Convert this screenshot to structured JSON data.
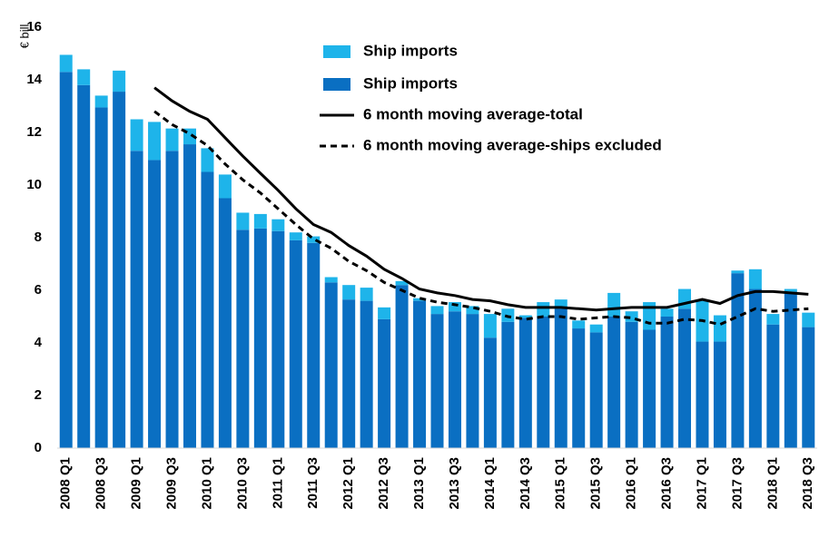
{
  "chart_data": {
    "type": "bar",
    "stacked": true,
    "y_label": "€ bill",
    "categories": [
      "2008 Q1",
      null,
      "2008 Q3",
      null,
      "2009 Q1",
      null,
      "2009 Q3",
      null,
      "2010 Q1",
      null,
      "2010 Q3",
      null,
      "2011 Q1",
      null,
      "2011 Q3",
      null,
      "2012 Q1",
      null,
      "2012 Q3",
      null,
      "2013 Q1",
      null,
      "2013 Q3",
      null,
      "2014 Q1",
      null,
      "2014 Q3",
      null,
      "2015 Q1",
      null,
      "2015 Q3",
      null,
      "2016 Q1",
      null,
      "2016 Q3",
      null,
      "2017 Q1",
      null,
      "2017 Q3",
      null,
      "2018 Q1",
      null,
      "2018 Q3"
    ],
    "series": [
      {
        "name": "Ship imports",
        "type": "bar",
        "color": "#1eb4ea",
        "values": [
          0.65,
          0.6,
          0.45,
          0.8,
          1.2,
          1.45,
          0.85,
          0.6,
          0.9,
          0.9,
          0.65,
          0.55,
          0.45,
          0.3,
          0.25,
          0.2,
          0.55,
          0.5,
          0.45,
          0.15,
          0.1,
          0.3,
          0.35,
          0.3,
          0.9,
          0.5,
          0.1,
          0.55,
          0.35,
          0.3,
          0.3,
          0.9,
          0.4,
          1.05,
          0.3,
          0.75,
          1.55,
          1.0,
          0.1,
          0.75,
          0.4,
          0.1,
          0.55
        ]
      },
      {
        "name": "Ship imports",
        "type": "bar",
        "color": "#0a6fc2",
        "values": [
          14.3,
          13.8,
          12.95,
          13.55,
          11.3,
          10.95,
          11.3,
          11.55,
          10.5,
          9.5,
          8.3,
          8.35,
          8.25,
          7.9,
          7.8,
          6.3,
          5.65,
          5.6,
          4.9,
          6.2,
          5.6,
          5.1,
          5.2,
          5.1,
          4.2,
          4.8,
          4.95,
          5.0,
          5.3,
          4.55,
          4.4,
          5.0,
          4.8,
          4.5,
          5.0,
          5.3,
          4.05,
          4.05,
          6.65,
          6.05,
          4.7,
          5.95,
          4.6
        ]
      },
      {
        "name": "6 month moving average-total",
        "type": "line",
        "color": "#000000",
        "dashed": false,
        "values": [
          null,
          null,
          null,
          null,
          null,
          13.7,
          13.2,
          12.8,
          12.5,
          11.8,
          11.1,
          10.45,
          9.8,
          9.1,
          8.5,
          8.2,
          7.7,
          7.3,
          6.8,
          6.45,
          6.05,
          5.9,
          5.8,
          5.65,
          5.6,
          5.45,
          5.35,
          5.35,
          5.35,
          5.3,
          5.25,
          5.3,
          5.35,
          5.35,
          5.35,
          5.5,
          5.65,
          5.5,
          5.8,
          5.95,
          5.95,
          5.9,
          5.85
        ]
      },
      {
        "name": "6 month moving average-ships excluded",
        "type": "line",
        "color": "#000000",
        "dashed": true,
        "values": [
          null,
          null,
          null,
          null,
          null,
          12.8,
          12.3,
          11.95,
          11.5,
          10.8,
          10.2,
          9.7,
          9.1,
          8.5,
          7.95,
          7.6,
          7.1,
          6.75,
          6.3,
          6.0,
          5.7,
          5.55,
          5.45,
          5.35,
          5.2,
          5.0,
          4.9,
          5.0,
          5.0,
          4.9,
          4.95,
          5.0,
          4.95,
          4.75,
          4.75,
          4.9,
          4.85,
          4.7,
          5.0,
          5.3,
          5.2,
          5.25,
          5.3
        ]
      }
    ],
    "ylim": [
      0,
      16
    ],
    "yticks": [
      0,
      2,
      4,
      6,
      8,
      10,
      12,
      14,
      16
    ],
    "grid": false
  }
}
